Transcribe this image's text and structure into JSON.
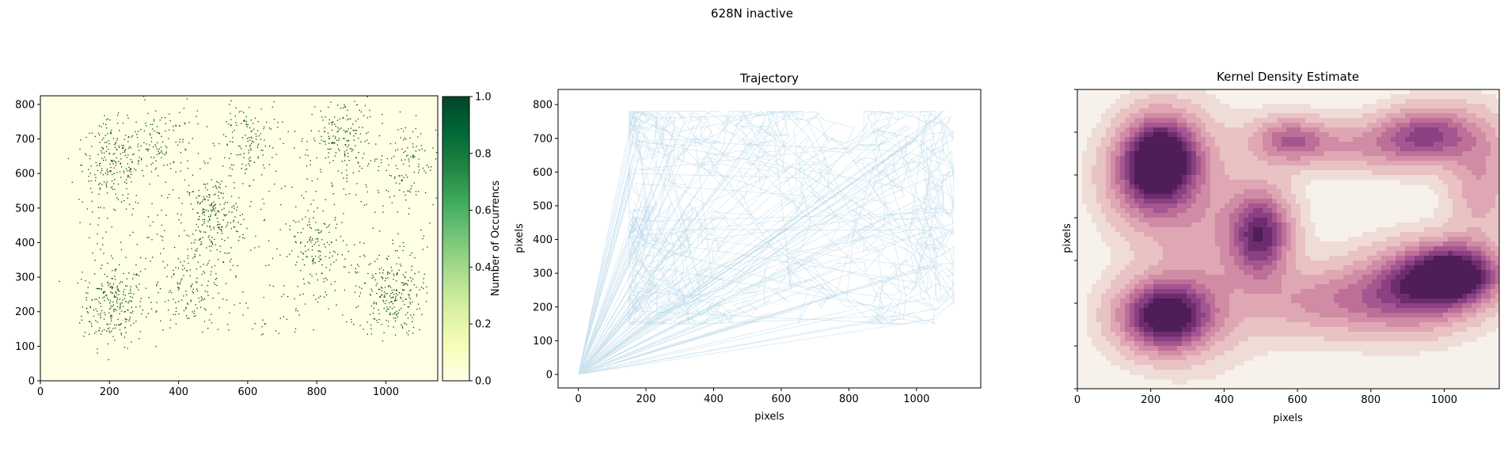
{
  "figure": {
    "suptitle": "628N inactive"
  },
  "chart_data": [
    {
      "type": "heatmap",
      "title": "",
      "xlabel": "",
      "ylabel": "",
      "xlim": [
        0,
        1150
      ],
      "ylim": [
        0,
        825
      ],
      "xticks": [
        0,
        200,
        400,
        600,
        800,
        1000
      ],
      "yticks": [
        0,
        100,
        200,
        300,
        400,
        500,
        600,
        700,
        800
      ],
      "background_color": "#ffffe5",
      "point_color": "#00441b",
      "colormap": "YlGn",
      "colorbar": {
        "label": "Number of Occurrencs",
        "range": [
          0,
          1
        ],
        "ticks": [
          "0.0",
          "0.2",
          "0.4",
          "0.6",
          "0.8",
          "1.0"
        ]
      },
      "occupancy_clusters": [
        {
          "x": 210,
          "y": 220,
          "count": 240
        },
        {
          "x": 210,
          "y": 630,
          "count": 200
        },
        {
          "x": 500,
          "y": 480,
          "count": 220
        },
        {
          "x": 1010,
          "y": 250,
          "count": 220
        },
        {
          "x": 870,
          "y": 700,
          "count": 160
        },
        {
          "x": 800,
          "y": 380,
          "count": 140
        },
        {
          "x": 350,
          "y": 680,
          "count": 110
        },
        {
          "x": 600,
          "y": 700,
          "count": 120
        },
        {
          "x": 1060,
          "y": 640,
          "count": 100
        },
        {
          "x": 420,
          "y": 260,
          "count": 100
        }
      ],
      "scatter_range": {
        "x": [
          110,
          1130
        ],
        "y": [
          130,
          790
        ],
        "count": 450
      }
    },
    {
      "type": "line",
      "title": "Trajectory",
      "xlabel": "pixels",
      "ylabel": "pixels",
      "xlim": [
        -60,
        1190
      ],
      "ylim": [
        -40,
        845
      ],
      "xticks": [
        0,
        200,
        400,
        600,
        800,
        1000
      ],
      "yticks": [
        0,
        100,
        200,
        300,
        400,
        500,
        600,
        700,
        800
      ],
      "line_color": "#9ecae1",
      "origin": [
        0,
        0
      ],
      "path_extent": {
        "x": [
          150,
          1110
        ],
        "y": [
          150,
          780
        ]
      },
      "origin_jumps": 90,
      "path_segments": 1200
    },
    {
      "type": "heatmap",
      "title": "Kernel Density Estimate",
      "xlabel": "pixels",
      "ylabel": "pixels",
      "xlim": [
        0,
        1150
      ],
      "ylim": [
        0,
        890
      ],
      "xticks": [
        0,
        200,
        400,
        600,
        800,
        1000
      ],
      "ytick_count": 8,
      "colormap": "PuRd-like",
      "levels": [
        "#f7f1ec",
        "#f0dcd6",
        "#e9c2c4",
        "#dfa7b4",
        "#d18ca5",
        "#bd6f98",
        "#a45690",
        "#8a4083",
        "#6d2c6e",
        "#4f1d57"
      ],
      "kde_centers": [
        {
          "x": 240,
          "y": 215,
          "sx": 85,
          "sy": 70,
          "w": 1.0
        },
        {
          "x": 230,
          "y": 700,
          "sx": 70,
          "sy": 80,
          "w": 0.85
        },
        {
          "x": 500,
          "y": 460,
          "sx": 55,
          "sy": 85,
          "w": 0.75
        },
        {
          "x": 1030,
          "y": 340,
          "sx": 85,
          "sy": 60,
          "w": 0.95
        },
        {
          "x": 920,
          "y": 300,
          "sx": 110,
          "sy": 80,
          "w": 0.55
        },
        {
          "x": 960,
          "y": 760,
          "sx": 90,
          "sy": 55,
          "w": 0.55
        },
        {
          "x": 580,
          "y": 740,
          "sx": 70,
          "sy": 45,
          "w": 0.45
        },
        {
          "x": 200,
          "y": 620,
          "sx": 80,
          "sy": 90,
          "w": 0.55
        },
        {
          "x": 700,
          "y": 260,
          "sx": 160,
          "sy": 70,
          "w": 0.35
        },
        {
          "x": 800,
          "y": 720,
          "sx": 150,
          "sy": 50,
          "w": 0.3
        },
        {
          "x": 350,
          "y": 450,
          "sx": 120,
          "sy": 200,
          "w": 0.25
        },
        {
          "x": 1100,
          "y": 620,
          "sx": 60,
          "sy": 120,
          "w": 0.3
        }
      ]
    }
  ]
}
